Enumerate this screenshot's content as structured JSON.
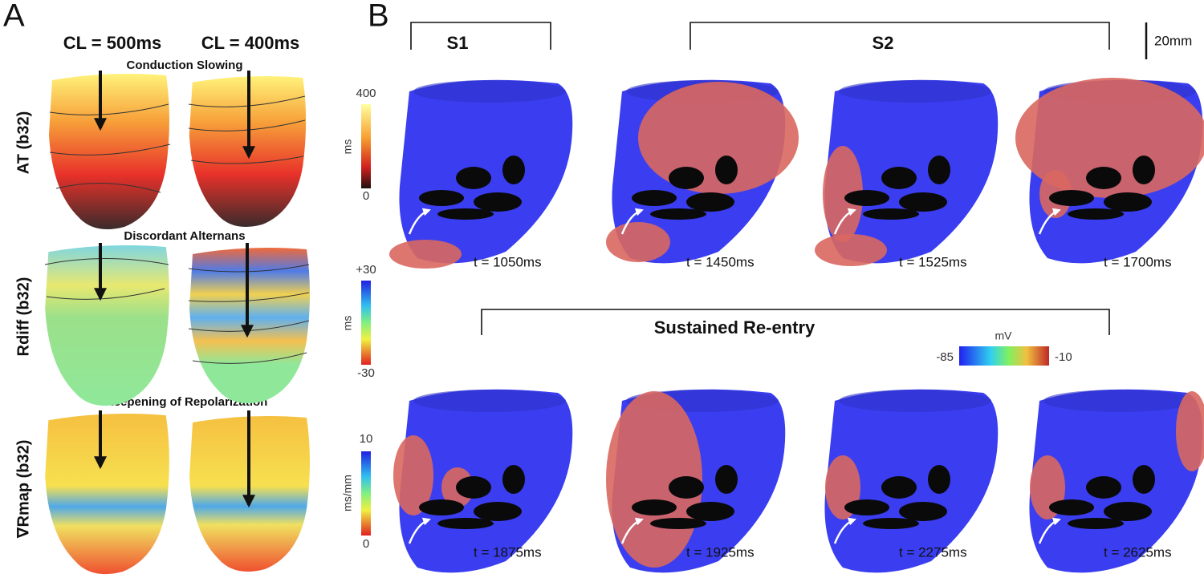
{
  "panel_a": {
    "label": "A",
    "columns": [
      "CL = 500ms",
      "CL = 400ms"
    ],
    "rows": [
      {
        "label": "AT (b32)",
        "caption": "Conduction Slowing",
        "colorbar": {
          "unit": "ms",
          "max": "400",
          "min": "0"
        }
      },
      {
        "label": "Rdiff (b32)",
        "caption": "Discordant Alternans",
        "colorbar": {
          "unit": "ms",
          "max": "+30",
          "min": "-30"
        }
      },
      {
        "label": "∇Rmap (b32)",
        "caption": "Steepening of Repolarization",
        "colorbar": {
          "unit": "ms/mm",
          "max": "10",
          "min": "0"
        }
      }
    ]
  },
  "panel_b": {
    "label": "B",
    "brackets": [
      "S1",
      "S2",
      "Sustained Re-entry"
    ],
    "scale_bar": "20mm",
    "colorbar": {
      "unit": "mV",
      "min": "-85",
      "max": "-10"
    },
    "frames": [
      "t = 1050ms",
      "t = 1450ms",
      "t = 1525ms",
      "t = 1700ms",
      "t = 1875ms",
      "t = 1925ms",
      "t = 2275ms",
      "t = 2625ms"
    ]
  }
}
